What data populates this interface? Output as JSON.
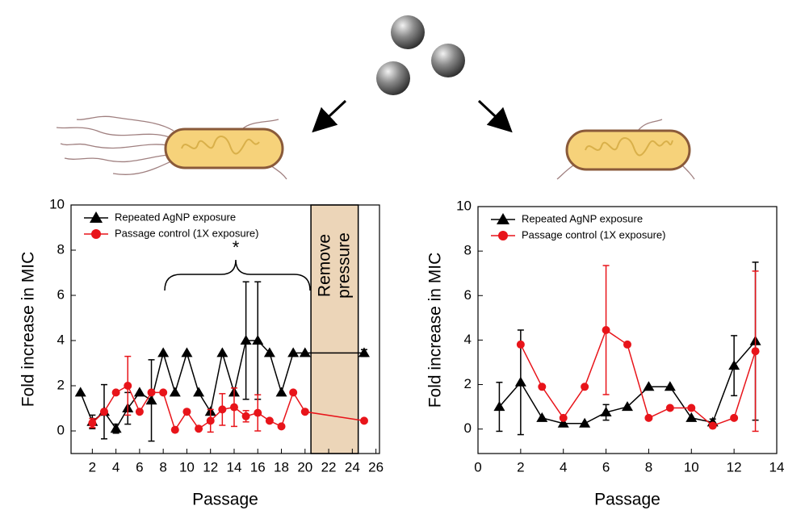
{
  "chart_data": [
    {
      "type": "line",
      "xlabel": "Passage",
      "ylabel": "Fold increase in MIC",
      "x": [
        1,
        2,
        3,
        4,
        5,
        6,
        7,
        8,
        9,
        10,
        11,
        12,
        13,
        14,
        15,
        16,
        17,
        18,
        19,
        20,
        25
      ],
      "series": [
        {
          "name": "Repeated AgNP exposure",
          "color": "#000000",
          "marker": "triangle",
          "values": [
            1.7,
            0.4,
            0.85,
            0.1,
            1.0,
            1.7,
            1.35,
            3.45,
            1.7,
            3.45,
            1.7,
            0.85,
            3.45,
            1.7,
            4.0,
            4.0,
            3.45,
            1.7,
            3.45,
            3.45,
            3.45
          ],
          "errors": [
            null,
            0.3,
            1.2,
            0.2,
            0.7,
            null,
            1.8,
            null,
            null,
            null,
            null,
            null,
            null,
            null,
            2.6,
            2.6,
            null,
            null,
            null,
            null,
            0.15
          ]
        },
        {
          "name": "Passage control (1X exposure)",
          "color": "#e8141a",
          "marker": "circle",
          "values": [
            null,
            0.35,
            0.85,
            1.7,
            2.0,
            0.85,
            1.7,
            1.7,
            0.05,
            0.85,
            0.1,
            0.45,
            0.95,
            1.05,
            0.65,
            0.8,
            0.45,
            0.2,
            1.7,
            0.85,
            0.45
          ],
          "errors": [
            null,
            0.2,
            null,
            null,
            1.3,
            null,
            null,
            null,
            null,
            null,
            null,
            0.5,
            0.7,
            0.85,
            0.25,
            0.8,
            null,
            null,
            null,
            null,
            null
          ]
        }
      ],
      "xlim": [
        0.2,
        26.3
      ],
      "xticks": [
        2,
        4,
        6,
        8,
        10,
        12,
        14,
        16,
        18,
        20,
        22,
        24,
        26
      ],
      "ylim": [
        -1,
        10
      ],
      "yticks": [
        0,
        2,
        4,
        6,
        8,
        10
      ],
      "legend": "upper left",
      "band": {
        "label": "Remove pressure",
        "xrange": [
          20.5,
          24.5
        ],
        "color": "#ecd5b8"
      },
      "annotation": "*"
    },
    {
      "type": "line",
      "xlabel": "Passage",
      "ylabel": "Fold increase in MIC",
      "x": [
        1,
        2,
        3,
        4,
        5,
        6,
        7,
        8,
        9,
        10,
        11,
        12,
        13
      ],
      "series": [
        {
          "name": "Repeated AgNP exposure",
          "color": "#000000",
          "marker": "triangle",
          "values": [
            1.0,
            2.1,
            0.5,
            0.25,
            0.25,
            0.75,
            1.0,
            1.9,
            1.9,
            0.5,
            0.3,
            2.85,
            3.95
          ],
          "errors": [
            1.1,
            2.35,
            null,
            null,
            null,
            0.35,
            null,
            null,
            null,
            null,
            0.15,
            1.35,
            3.55
          ]
        },
        {
          "name": "Passage control (1X exposure)",
          "color": "#e8141a",
          "marker": "circle",
          "values": [
            null,
            3.8,
            1.9,
            0.5,
            1.9,
            4.45,
            3.8,
            0.5,
            0.95,
            0.95,
            0.15,
            0.5,
            3.5
          ],
          "errors": [
            null,
            null,
            null,
            null,
            null,
            2.9,
            null,
            null,
            null,
            null,
            null,
            null,
            3.6
          ]
        }
      ],
      "xlim": [
        0,
        14
      ],
      "xticks": [
        0,
        2,
        4,
        6,
        8,
        10,
        12,
        14
      ],
      "ylim": [
        -1.1,
        10
      ],
      "yticks": [
        0,
        2,
        4,
        6,
        8,
        10
      ],
      "legend": "upper left"
    }
  ]
}
